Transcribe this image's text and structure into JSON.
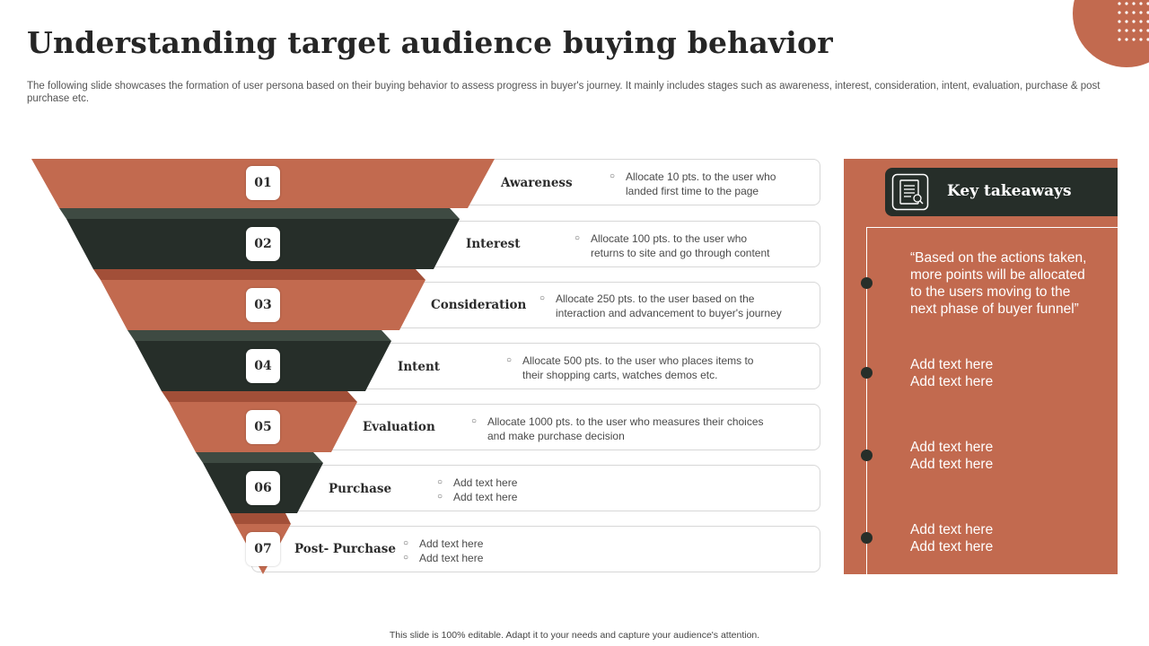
{
  "title": "Understanding target audience buying behavior",
  "subtitle": "The following slide showcases the formation of user persona based on their buying behavior to assess progress in buyer's journey. It mainly includes stages such as awareness, interest, consideration, intent, evaluation, purchase & post purchase etc.",
  "colors": {
    "accent": "#c26a4f",
    "dark": "#262e29"
  },
  "stages": [
    {
      "number": "01",
      "name": "Awareness",
      "lines": [
        "Allocate 10 pts. to the user who",
        "landed first time to the page"
      ]
    },
    {
      "number": "02",
      "name": "Interest",
      "lines": [
        "Allocate 100 pts. to the user who",
        "returns to site and go through content"
      ]
    },
    {
      "number": "03",
      "name": "Consideration",
      "lines": [
        "Allocate 250 pts. to the user based on the",
        "interaction and advancement  to buyer's journey"
      ]
    },
    {
      "number": "04",
      "name": "Intent",
      "lines": [
        "Allocate 500 pts. to the user who places items to",
        "their shopping carts, watches demos etc."
      ]
    },
    {
      "number": "05",
      "name": "Evaluation",
      "lines": [
        "Allocate 1000 pts. to the user who measures their choices",
        "and make purchase decision"
      ]
    },
    {
      "number": "06",
      "name": "Purchase",
      "lines": [
        "Add text here",
        "Add text here"
      ]
    },
    {
      "number": "07",
      "name": "Post- Purchase",
      "lines": [
        "Add text here",
        "Add text here"
      ]
    }
  ],
  "takeaways": {
    "title": "Key takeaways",
    "icon": "checklist-icon",
    "quote_lines": [
      "“Based on the actions taken,",
      "more points will be allocated",
      "to the users moving to the",
      "next phase of buyer funnel”"
    ],
    "items": [
      [
        "Add text here",
        "Add text here"
      ],
      [
        "Add text here",
        "Add text here"
      ],
      [
        "Add text here",
        "Add text here"
      ]
    ]
  },
  "footer": "This slide is 100% editable. Adapt it to your needs and capture your audience's attention."
}
